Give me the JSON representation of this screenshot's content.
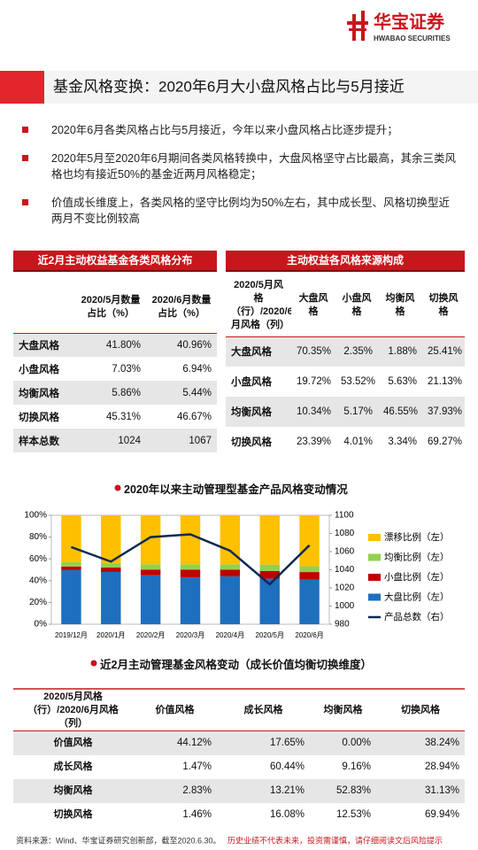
{
  "logo": {
    "name": "华宝证券",
    "sub": "HWABAO SECURITIES"
  },
  "title": "基金风格变换：2020年6月大小盘风格占比与5月接近",
  "bullets": [
    "2020年6月各类风格占比与5月接近，今年以来小盘风格占比逐步提升；",
    "2020年5月至2020年6月期间各类风格转换中，大盘风格坚守占比最高，其余三类风格也均有接近50%的基金近两月风格稳定；",
    "价值成长维度上，各类风格的坚守比例均为50%左右，其中成长型、风格切换型近两月不变比例较高"
  ],
  "table1": {
    "title": "近2月主动权益基金各类风格分布",
    "columns": [
      "2020/5月数量占比（%）",
      "2020/6月数量占比（%）"
    ],
    "rows": [
      [
        "大盘风格",
        "41.80%",
        "40.96%"
      ],
      [
        "小盘风格",
        "7.03%",
        "6.94%"
      ],
      [
        "均衡风格",
        "5.86%",
        "5.44%"
      ],
      [
        "切换风格",
        "45.31%",
        "46.67%"
      ],
      [
        "样本总数",
        "1024",
        "1067"
      ]
    ]
  },
  "table2": {
    "title": "主动权益各风格来源构成",
    "corner": "2020/5月风格（行）/2020/6月风格（列）",
    "columns": [
      "大盘风格",
      "小盘风格",
      "均衡风格",
      "切换风格"
    ],
    "rows": [
      [
        "大盘风格",
        "70.35%",
        "2.35%",
        "1.88%",
        "25.41%"
      ],
      [
        "小盘风格",
        "19.72%",
        "53.52%",
        "5.63%",
        "21.13%"
      ],
      [
        "均衡风格",
        "10.34%",
        "5.17%",
        "46.55%",
        "37.93%"
      ],
      [
        "切换风格",
        "23.39%",
        "4.01%",
        "3.34%",
        "69.27%"
      ]
    ]
  },
  "chart_data": {
    "type": "bar",
    "title": "2020年以来主动管理型基金产品风格变动情况",
    "categories": [
      "2019/12月",
      "2020/1月",
      "2020/2月",
      "2020/3月",
      "2020/4月",
      "2020/5月",
      "2020/6月"
    ],
    "series": [
      {
        "name": "漂移比例（左）",
        "color": "#ffc000",
        "values": [
          43,
          44,
          45,
          45,
          45,
          45.31,
          46.67
        ]
      },
      {
        "name": "均衡比例（左）",
        "color": "#92d050",
        "values": [
          4,
          4,
          5,
          5,
          5,
          5.86,
          5.44
        ]
      },
      {
        "name": "小盘比例（左）",
        "color": "#c00000",
        "values": [
          3,
          4,
          5,
          7,
          6,
          7.03,
          6.94
        ]
      },
      {
        "name": "大盘比例（左）",
        "color": "#1f6fbf",
        "values": [
          50,
          48,
          45,
          43,
          44,
          41.8,
          40.96
        ]
      },
      {
        "name": "产品总数（右）",
        "type": "line",
        "axis": "y2",
        "color": "#0d2a4f",
        "values": [
          1065,
          1049,
          1076,
          1079,
          1061,
          1024,
          1067
        ]
      }
    ],
    "stacked": true,
    "ylim": [
      0,
      100
    ],
    "yticks": [
      {
        "value": 0,
        "label": "0%"
      },
      {
        "value": 20,
        "label": "20%"
      },
      {
        "value": 40,
        "label": "40%"
      },
      {
        "value": 60,
        "label": "60%"
      },
      {
        "value": 80,
        "label": "80%"
      },
      {
        "value": 100,
        "label": "100%"
      }
    ],
    "y2lim": [
      980,
      1100
    ],
    "y2ticks": [
      980,
      1000,
      1020,
      1040,
      1060,
      1080,
      1100
    ],
    "legend": "right"
  },
  "table3": {
    "title": "近2月主动管理基金风格变动（成长价值均衡切换维度）",
    "corner": "2020/5月风格（行）/2020/6月风格（列）",
    "columns": [
      "价值风格",
      "成长风格",
      "均衡风格",
      "切换风格"
    ],
    "rows": [
      [
        "价值风格",
        "44.12%",
        "17.65%",
        "0.00%",
        "38.24%"
      ],
      [
        "成长风格",
        "1.47%",
        "60.44%",
        "9.16%",
        "28.94%"
      ],
      [
        "均衡风格",
        "2.83%",
        "13.21%",
        "52.83%",
        "31.13%"
      ],
      [
        "切换风格",
        "1.46%",
        "16.08%",
        "12.53%",
        "69.94%"
      ]
    ]
  },
  "footer": {
    "source": "资料来源：Wind、华宝证券研究创新部，截至2020.6.30。",
    "warning": "历史业绩不代表未来，投资需谨慎，请仔细阅读文后风险提示"
  }
}
